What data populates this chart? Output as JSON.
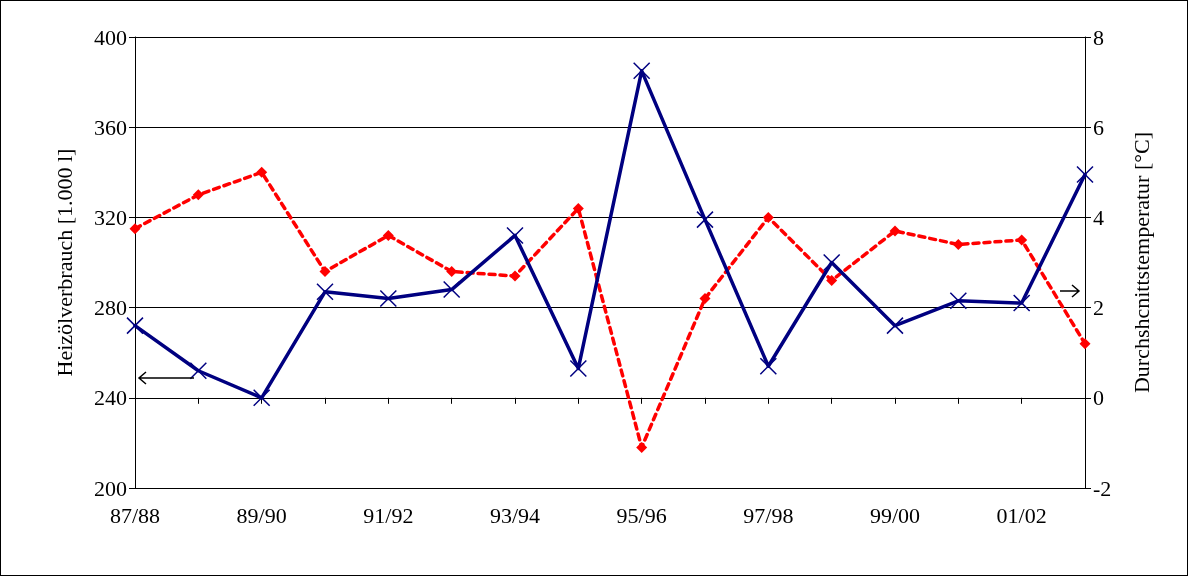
{
  "chart_data": {
    "type": "line",
    "ylabel": "Heizölverbrauch [1.000 l]",
    "y2label": "Durchshcnittstemperatur [°C]",
    "categories": [
      "87/88",
      null,
      "89/90",
      null,
      "91/92",
      null,
      "93/94",
      null,
      "95/96",
      null,
      "97/98",
      null,
      "99/00",
      null,
      "01/02",
      null
    ],
    "series": [
      {
        "color": "#000080",
        "marker": "cross",
        "line_style": "solid",
        "values": [
          272,
          252,
          240,
          287,
          284,
          288,
          312,
          253,
          385,
          319,
          254,
          300,
          272,
          283,
          282,
          339
        ]
      },
      {
        "color": "#ff0000",
        "marker": "diamond",
        "line_style": "dashed",
        "axis": "y2",
        "values": [
          3.75,
          4.5,
          5.0,
          2.8,
          3.6,
          2.8,
          2.7,
          4.2,
          -1.1,
          2.2,
          4.0,
          2.6,
          3.7,
          3.4,
          3.5,
          1.2
        ]
      }
    ],
    "ylim": [
      200,
      400
    ],
    "yticks": [
      200,
      240,
      280,
      320,
      360,
      400
    ],
    "y2lim": [
      -2,
      8
    ],
    "y2ticks": [
      -2,
      0,
      2,
      4,
      6,
      8
    ],
    "grid": "y"
  }
}
